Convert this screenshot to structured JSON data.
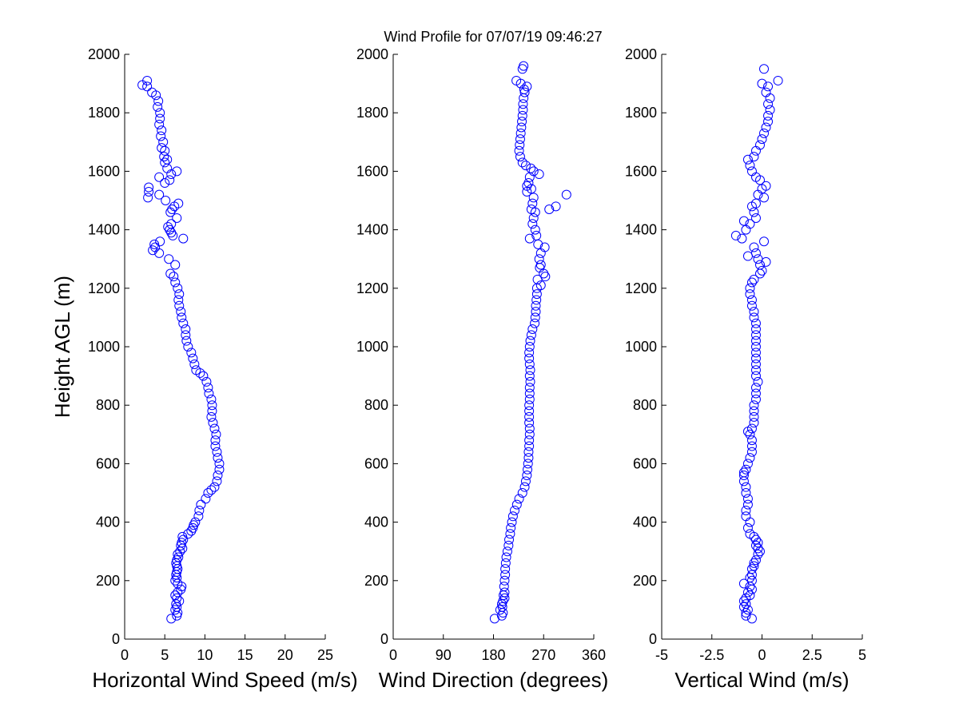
{
  "figure_title": "Wind Profile for  07/07/19 09:46:27",
  "chart_data": [
    {
      "type": "scatter",
      "xlabel": "Horizontal Wind Speed (m/s)",
      "ylabel": "Height AGL (m)",
      "xlim": [
        0,
        25
      ],
      "ylim": [
        0,
        2000
      ],
      "xticks": [
        "0",
        "5",
        "10",
        "15",
        "20",
        "25"
      ],
      "yticks": [
        "0",
        "200",
        "400",
        "600",
        "800",
        "1000",
        "1200",
        "1400",
        "1600",
        "1800",
        "2000"
      ],
      "marker": "circle",
      "color": "#0000ff",
      "points": [
        [
          5.8,
          70
        ],
        [
          6.5,
          80
        ],
        [
          6.6,
          90
        ],
        [
          6.3,
          100
        ],
        [
          6.5,
          110
        ],
        [
          6.4,
          120
        ],
        [
          6.8,
          130
        ],
        [
          6.5,
          140
        ],
        [
          6.3,
          150
        ],
        [
          6.6,
          160
        ],
        [
          7.0,
          170
        ],
        [
          7.1,
          180
        ],
        [
          6.6,
          190
        ],
        [
          6.3,
          200
        ],
        [
          6.5,
          210
        ],
        [
          6.4,
          220
        ],
        [
          6.5,
          230
        ],
        [
          6.6,
          240
        ],
        [
          6.5,
          250
        ],
        [
          6.4,
          260
        ],
        [
          6.5,
          270
        ],
        [
          6.7,
          280
        ],
        [
          6.6,
          290
        ],
        [
          6.9,
          300
        ],
        [
          7.2,
          310
        ],
        [
          7.0,
          320
        ],
        [
          7.1,
          330
        ],
        [
          7.3,
          340
        ],
        [
          7.2,
          350
        ],
        [
          7.9,
          360
        ],
        [
          8.3,
          370
        ],
        [
          8.5,
          380
        ],
        [
          8.6,
          390
        ],
        [
          8.8,
          400
        ],
        [
          9.2,
          420
        ],
        [
          9.3,
          440
        ],
        [
          9.5,
          460
        ],
        [
          10.1,
          480
        ],
        [
          10.4,
          500
        ],
        [
          10.8,
          510
        ],
        [
          11.2,
          520
        ],
        [
          11.5,
          540
        ],
        [
          11.6,
          560
        ],
        [
          11.8,
          580
        ],
        [
          11.8,
          600
        ],
        [
          11.6,
          620
        ],
        [
          11.5,
          640
        ],
        [
          11.3,
          660
        ],
        [
          11.3,
          680
        ],
        [
          11.4,
          700
        ],
        [
          11.2,
          720
        ],
        [
          11.0,
          740
        ],
        [
          10.8,
          760
        ],
        [
          10.9,
          780
        ],
        [
          10.9,
          800
        ],
        [
          10.8,
          820
        ],
        [
          10.5,
          840
        ],
        [
          10.4,
          860
        ],
        [
          10.2,
          880
        ],
        [
          9.8,
          900
        ],
        [
          9.4,
          910
        ],
        [
          8.9,
          920
        ],
        [
          8.7,
          940
        ],
        [
          8.5,
          960
        ],
        [
          8.3,
          980
        ],
        [
          7.9,
          1000
        ],
        [
          7.7,
          1020
        ],
        [
          7.6,
          1040
        ],
        [
          7.6,
          1060
        ],
        [
          7.3,
          1080
        ],
        [
          7.1,
          1100
        ],
        [
          7.0,
          1120
        ],
        [
          6.8,
          1140
        ],
        [
          6.7,
          1160
        ],
        [
          6.8,
          1180
        ],
        [
          6.6,
          1200
        ],
        [
          6.3,
          1220
        ],
        [
          6.1,
          1240
        ],
        [
          5.7,
          1250
        ],
        [
          6.3,
          1280
        ],
        [
          5.5,
          1300
        ],
        [
          4.3,
          1320
        ],
        [
          3.5,
          1330
        ],
        [
          3.8,
          1340
        ],
        [
          3.7,
          1350
        ],
        [
          4.4,
          1360
        ],
        [
          7.3,
          1370
        ],
        [
          6.0,
          1380
        ],
        [
          5.8,
          1390
        ],
        [
          5.6,
          1400
        ],
        [
          5.4,
          1410
        ],
        [
          5.8,
          1420
        ],
        [
          6.5,
          1440
        ],
        [
          5.7,
          1460
        ],
        [
          5.9,
          1470
        ],
        [
          6.2,
          1480
        ],
        [
          6.7,
          1490
        ],
        [
          5.1,
          1500
        ],
        [
          4.3,
          1520
        ],
        [
          2.9,
          1510
        ],
        [
          3.0,
          1530
        ],
        [
          3.0,
          1545
        ],
        [
          5.0,
          1560
        ],
        [
          5.6,
          1570
        ],
        [
          4.3,
          1580
        ],
        [
          5.8,
          1590
        ],
        [
          6.5,
          1600
        ],
        [
          5.3,
          1610
        ],
        [
          5.0,
          1630
        ],
        [
          5.3,
          1640
        ],
        [
          4.9,
          1650
        ],
        [
          5.0,
          1670
        ],
        [
          4.6,
          1680
        ],
        [
          4.8,
          1700
        ],
        [
          4.5,
          1720
        ],
        [
          4.6,
          1740
        ],
        [
          4.3,
          1760
        ],
        [
          4.4,
          1780
        ],
        [
          4.4,
          1800
        ],
        [
          4.1,
          1820
        ],
        [
          4.2,
          1840
        ],
        [
          3.9,
          1860
        ],
        [
          3.4,
          1870
        ],
        [
          2.8,
          1890
        ],
        [
          2.2,
          1895
        ],
        [
          2.8,
          1910
        ]
      ]
    },
    {
      "type": "scatter",
      "xlabel": "Wind Direction (degrees)",
      "ylabel": "",
      "xlim": [
        0,
        360
      ],
      "ylim": [
        0,
        2000
      ],
      "xticks": [
        "0",
        "90",
        "180",
        "270",
        "360"
      ],
      "yticks": [
        "0",
        "200",
        "400",
        "600",
        "800",
        "1000",
        "1200",
        "1400",
        "1600",
        "1800",
        "2000"
      ],
      "marker": "circle",
      "color": "#0000ff",
      "points": [
        [
          182,
          70
        ],
        [
          195,
          80
        ],
        [
          197,
          90
        ],
        [
          192,
          100
        ],
        [
          196,
          110
        ],
        [
          195,
          120
        ],
        [
          197,
          130
        ],
        [
          200,
          140
        ],
        [
          198,
          150
        ],
        [
          200,
          160
        ],
        [
          199,
          180
        ],
        [
          200,
          200
        ],
        [
          201,
          220
        ],
        [
          201,
          240
        ],
        [
          202,
          260
        ],
        [
          203,
          280
        ],
        [
          205,
          300
        ],
        [
          207,
          320
        ],
        [
          208,
          340
        ],
        [
          210,
          360
        ],
        [
          211,
          380
        ],
        [
          213,
          400
        ],
        [
          215,
          420
        ],
        [
          218,
          440
        ],
        [
          222,
          460
        ],
        [
          226,
          480
        ],
        [
          232,
          500
        ],
        [
          236,
          520
        ],
        [
          238,
          540
        ],
        [
          240,
          560
        ],
        [
          241,
          580
        ],
        [
          242,
          600
        ],
        [
          243,
          620
        ],
        [
          243,
          640
        ],
        [
          244,
          660
        ],
        [
          244,
          680
        ],
        [
          245,
          700
        ],
        [
          245,
          720
        ],
        [
          244,
          740
        ],
        [
          244,
          760
        ],
        [
          244,
          780
        ],
        [
          244,
          800
        ],
        [
          245,
          820
        ],
        [
          245,
          840
        ],
        [
          245,
          860
        ],
        [
          246,
          880
        ],
        [
          245,
          900
        ],
        [
          246,
          920
        ],
        [
          245,
          940
        ],
        [
          244,
          960
        ],
        [
          244,
          980
        ],
        [
          245,
          1000
        ],
        [
          246,
          1020
        ],
        [
          248,
          1040
        ],
        [
          250,
          1060
        ],
        [
          254,
          1080
        ],
        [
          255,
          1100
        ],
        [
          256,
          1120
        ],
        [
          256,
          1140
        ],
        [
          257,
          1160
        ],
        [
          258,
          1180
        ],
        [
          258,
          1200
        ],
        [
          265,
          1210
        ],
        [
          259,
          1230
        ],
        [
          273,
          1240
        ],
        [
          270,
          1250
        ],
        [
          263,
          1270
        ],
        [
          265,
          1280
        ],
        [
          262,
          1300
        ],
        [
          272,
          1340
        ],
        [
          265,
          1320
        ],
        [
          260,
          1350
        ],
        [
          257,
          1380
        ],
        [
          255,
          1400
        ],
        [
          250,
          1420
        ],
        [
          245,
          1370
        ],
        [
          252,
          1440
        ],
        [
          255,
          1460
        ],
        [
          248,
          1470
        ],
        [
          280,
          1470
        ],
        [
          292,
          1480
        ],
        [
          250,
          1490
        ],
        [
          252,
          1510
        ],
        [
          311,
          1520
        ],
        [
          240,
          1530
        ],
        [
          248,
          1540
        ],
        [
          240,
          1550
        ],
        [
          243,
          1560
        ],
        [
          245,
          1580
        ],
        [
          262,
          1590
        ],
        [
          252,
          1600
        ],
        [
          247,
          1610
        ],
        [
          238,
          1620
        ],
        [
          232,
          1630
        ],
        [
          228,
          1650
        ],
        [
          226,
          1670
        ],
        [
          227,
          1690
        ],
        [
          228,
          1710
        ],
        [
          229,
          1730
        ],
        [
          230,
          1750
        ],
        [
          231,
          1770
        ],
        [
          232,
          1790
        ],
        [
          233,
          1810
        ],
        [
          233,
          1830
        ],
        [
          234,
          1850
        ],
        [
          236,
          1870
        ],
        [
          235,
          1880
        ],
        [
          240,
          1890
        ],
        [
          229,
          1900
        ],
        [
          221,
          1910
        ],
        [
          232,
          1950
        ],
        [
          234,
          1960
        ]
      ]
    },
    {
      "type": "scatter",
      "xlabel": "Vertical Wind (m/s)",
      "ylabel": "",
      "xlim": [
        -5,
        5
      ],
      "ylim": [
        0,
        2000
      ],
      "xticks": [
        "-5",
        "-2.5",
        "0",
        "2.5",
        "5"
      ],
      "yticks": [
        "0",
        "200",
        "400",
        "600",
        "800",
        "1000",
        "1200",
        "1400",
        "1600",
        "1800",
        "2000"
      ],
      "marker": "circle",
      "color": "#0000ff",
      "points": [
        [
          -0.5,
          70
        ],
        [
          -0.8,
          80
        ],
        [
          -0.8,
          90
        ],
        [
          -0.7,
          100
        ],
        [
          -0.9,
          110
        ],
        [
          -0.8,
          120
        ],
        [
          -0.9,
          130
        ],
        [
          -0.8,
          140
        ],
        [
          -0.6,
          150
        ],
        [
          -0.7,
          160
        ],
        [
          -0.5,
          170
        ],
        [
          -0.6,
          180
        ],
        [
          -0.9,
          190
        ],
        [
          -0.5,
          200
        ],
        [
          -0.6,
          210
        ],
        [
          -0.5,
          220
        ],
        [
          -0.5,
          240
        ],
        [
          -0.4,
          250
        ],
        [
          -0.4,
          260
        ],
        [
          -0.3,
          270
        ],
        [
          -0.2,
          290
        ],
        [
          -0.1,
          300
        ],
        [
          -0.2,
          310
        ],
        [
          -0.3,
          320
        ],
        [
          -0.2,
          330
        ],
        [
          -0.3,
          340
        ],
        [
          -0.4,
          350
        ],
        [
          -0.6,
          360
        ],
        [
          -0.7,
          380
        ],
        [
          -0.6,
          400
        ],
        [
          -0.8,
          420
        ],
        [
          -0.8,
          440
        ],
        [
          -0.7,
          460
        ],
        [
          -0.7,
          480
        ],
        [
          -0.8,
          500
        ],
        [
          -0.8,
          520
        ],
        [
          -0.9,
          540
        ],
        [
          -0.9,
          560
        ],
        [
          -0.9,
          570
        ],
        [
          -0.8,
          580
        ],
        [
          -0.7,
          600
        ],
        [
          -0.6,
          620
        ],
        [
          -0.5,
          640
        ],
        [
          -0.5,
          660
        ],
        [
          -0.5,
          680
        ],
        [
          -0.6,
          700
        ],
        [
          -0.7,
          710
        ],
        [
          -0.5,
          720
        ],
        [
          -0.4,
          740
        ],
        [
          -0.4,
          760
        ],
        [
          -0.4,
          780
        ],
        [
          -0.4,
          800
        ],
        [
          -0.3,
          820
        ],
        [
          -0.3,
          840
        ],
        [
          -0.3,
          860
        ],
        [
          -0.2,
          880
        ],
        [
          -0.3,
          900
        ],
        [
          -0.3,
          920
        ],
        [
          -0.3,
          940
        ],
        [
          -0.3,
          960
        ],
        [
          -0.3,
          980
        ],
        [
          -0.3,
          1000
        ],
        [
          -0.3,
          1020
        ],
        [
          -0.3,
          1040
        ],
        [
          -0.3,
          1060
        ],
        [
          -0.3,
          1080
        ],
        [
          -0.4,
          1100
        ],
        [
          -0.4,
          1120
        ],
        [
          -0.5,
          1140
        ],
        [
          -0.5,
          1160
        ],
        [
          -0.6,
          1180
        ],
        [
          -0.6,
          1200
        ],
        [
          -0.5,
          1220
        ],
        [
          -0.4,
          1230
        ],
        [
          -0.1,
          1250
        ],
        [
          0.0,
          1260
        ],
        [
          -0.1,
          1280
        ],
        [
          0.2,
          1290
        ],
        [
          -0.2,
          1300
        ],
        [
          -0.3,
          1320
        ],
        [
          -0.7,
          1310
        ],
        [
          -0.4,
          1340
        ],
        [
          0.1,
          1360
        ],
        [
          -1.0,
          1370
        ],
        [
          -1.3,
          1380
        ],
        [
          -0.8,
          1400
        ],
        [
          -0.6,
          1420
        ],
        [
          -0.9,
          1430
        ],
        [
          -0.3,
          1440
        ],
        [
          -0.4,
          1460
        ],
        [
          -0.5,
          1480
        ],
        [
          -0.3,
          1490
        ],
        [
          0.1,
          1510
        ],
        [
          -0.2,
          1520
        ],
        [
          0.0,
          1540
        ],
        [
          0.2,
          1550
        ],
        [
          -0.1,
          1570
        ],
        [
          -0.3,
          1580
        ],
        [
          -0.5,
          1600
        ],
        [
          -0.6,
          1620
        ],
        [
          -0.7,
          1640
        ],
        [
          -0.4,
          1650
        ],
        [
          -0.3,
          1670
        ],
        [
          -0.1,
          1690
        ],
        [
          0.0,
          1710
        ],
        [
          0.1,
          1730
        ],
        [
          0.2,
          1750
        ],
        [
          0.3,
          1770
        ],
        [
          0.3,
          1790
        ],
        [
          0.4,
          1810
        ],
        [
          0.3,
          1830
        ],
        [
          0.4,
          1850
        ],
        [
          0.2,
          1870
        ],
        [
          0.3,
          1890
        ],
        [
          0.0,
          1900
        ],
        [
          0.8,
          1910
        ],
        [
          0.1,
          1950
        ]
      ]
    }
  ]
}
